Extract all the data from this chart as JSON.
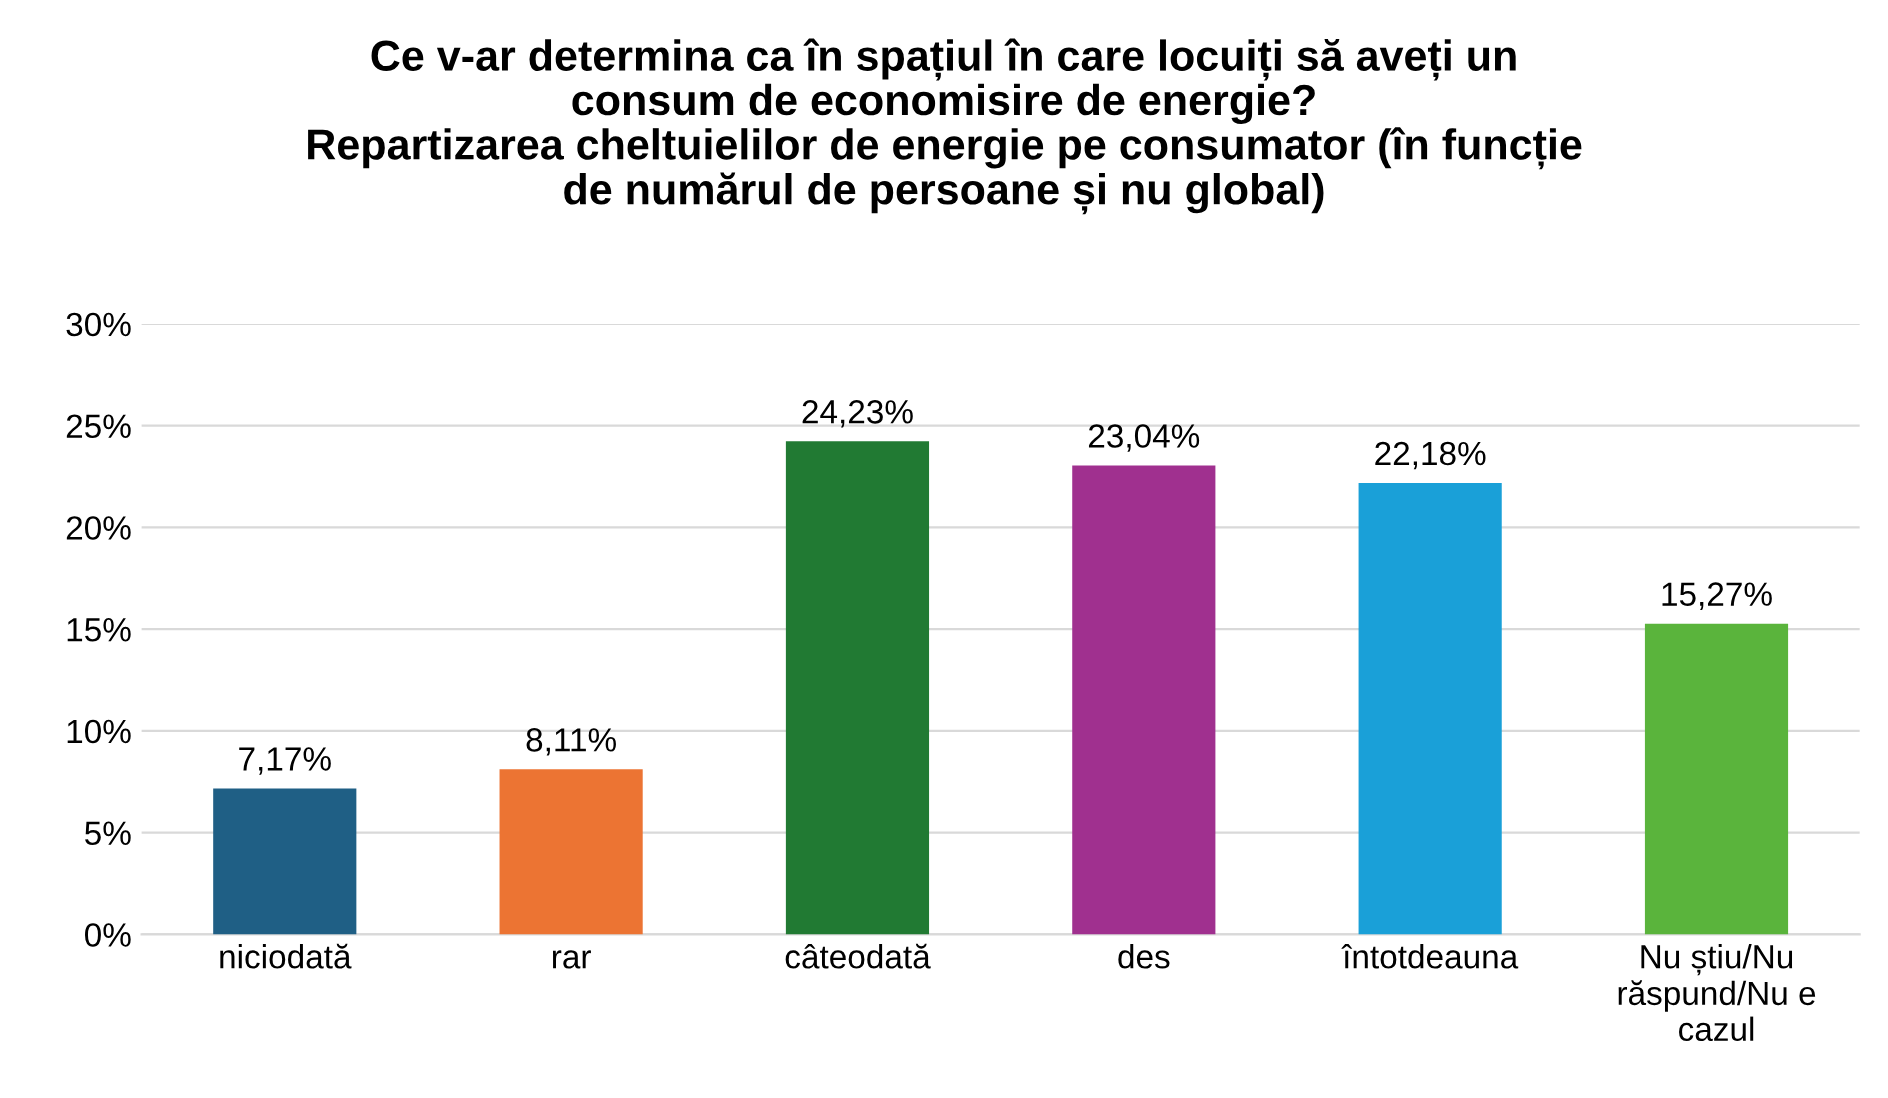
{
  "chart_data": {
    "type": "bar",
    "title": "Ce v-ar determina ca în spațiul în care locuiți să aveți un\nconsum de economisire de energie?\nRepartizarea cheltuielilor de energie pe consumator (în funcție\nde numărul de persoane și nu global)",
    "categories": [
      "niciodată",
      "rar",
      "câteodată",
      "des",
      "întotdeauna",
      "Nu știu/Nu\nrăspund/Nu e\ncazul"
    ],
    "values": [
      7.17,
      8.11,
      24.23,
      23.04,
      22.18,
      15.27
    ],
    "colors": [
      "#1f5f85",
      "#ec7433",
      "#217a33",
      "#a0308f",
      "#1aa0d8",
      "#5ab43c"
    ],
    "value_labels": [
      "7,17%",
      "8,11%",
      "24,23%",
      "23,04%",
      "22,18%",
      "15,27%"
    ],
    "ylim": [
      0,
      30
    ],
    "yticks": [
      {
        "value": 0,
        "label": "0%"
      },
      {
        "value": 5,
        "label": "5%"
      },
      {
        "value": 10,
        "label": "10%"
      },
      {
        "value": 15,
        "label": "15%"
      },
      {
        "value": 20,
        "label": "20%"
      },
      {
        "value": 25,
        "label": "25%"
      },
      {
        "value": 30,
        "label": "30%"
      }
    ],
    "grid": "y",
    "legend": false
  }
}
